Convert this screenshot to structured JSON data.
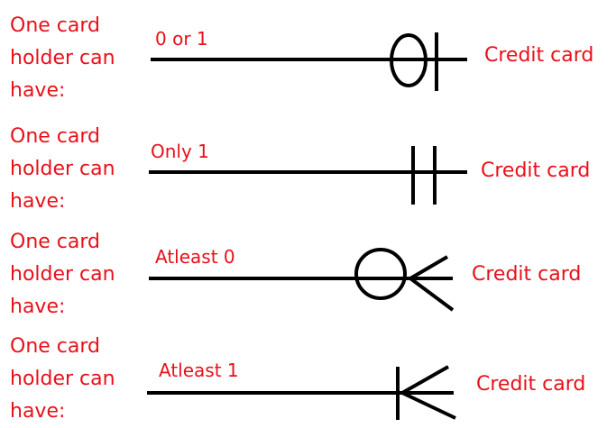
{
  "rows": [
    {
      "left_text": "One card\nholder can\nhave:",
      "cardinality": "0 or 1",
      "right_text": "Credit card",
      "notation": "zero-or-one"
    },
    {
      "left_text": "One card\nholder can\nhave:",
      "cardinality": "Only 1",
      "right_text": "Credit card",
      "notation": "exactly-one"
    },
    {
      "left_text": "One card\nholder can\nhave:",
      "cardinality": "Atleast 0",
      "right_text": "Credit card",
      "notation": "zero-or-many"
    },
    {
      "left_text": "One card\nholder can\nhave:",
      "cardinality": "Atleast 1",
      "right_text": "Credit card",
      "notation": "one-or-many"
    }
  ],
  "colors": {
    "text": "#e8101a",
    "lines": "#000000",
    "background": "#ffffff"
  }
}
